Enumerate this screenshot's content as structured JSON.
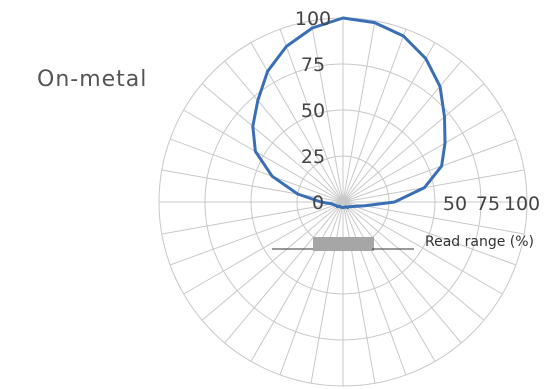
{
  "chart_data": {
    "type": "line",
    "subtype": "polar",
    "title": "On-metal",
    "radial_ticks": [
      0,
      25,
      50,
      75,
      100
    ],
    "radial_ticks_right": [
      "50",
      "75",
      "100"
    ],
    "radial_range": [
      0,
      100
    ],
    "radial_unit": "Read range (%)",
    "angular_step_deg": 10,
    "grid": true,
    "series": [
      {
        "color": "#3a6fb5",
        "angles_deg": [
          0,
          10,
          20,
          30,
          40,
          50,
          60,
          70,
          80,
          90,
          100,
          110,
          120,
          130,
          140,
          150,
          160,
          170,
          180,
          190,
          200,
          210,
          220,
          230,
          240,
          250,
          260,
          270,
          280,
          290,
          300,
          310,
          320,
          330,
          340,
          350
        ],
        "values": [
          100,
          99,
          96,
          90,
          82,
          72,
          64,
          57,
          45,
          28,
          12,
          7,
          5,
          4,
          4,
          3,
          3,
          3,
          3,
          3,
          3,
          3,
          3,
          4,
          4,
          5,
          6,
          12,
          25,
          41,
          55,
          64,
          72,
          82,
          90,
          96
        ]
      }
    ],
    "gray_bar_color": "#a6a6a6"
  }
}
